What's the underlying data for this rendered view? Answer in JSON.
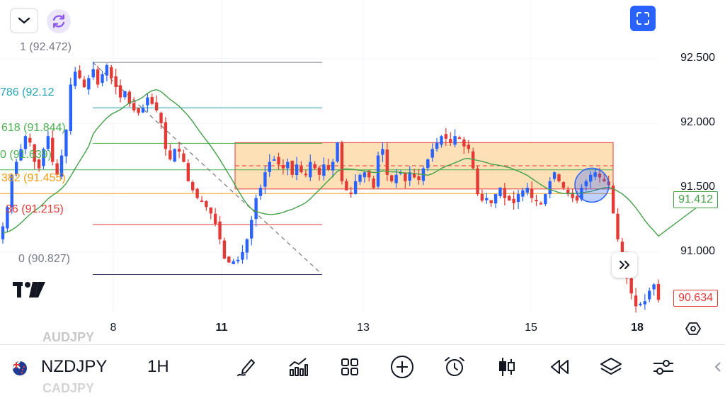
{
  "header": {
    "collapse_icon": "chevron-down-icon",
    "sync_icon": "refresh-icon",
    "fullscreen_icon": "fullscreen-icon"
  },
  "fib_labels": [
    {
      "text": "1 (92.472)",
      "color": "#787b86"
    },
    {
      "text": "786 (92.12",
      "color": "#26a6b8"
    },
    {
      "text": "618 (91.844)",
      "color": "#4caf50"
    },
    {
      "text": "0 (91.639)",
      "color": "#4caf50"
    },
    {
      "text": "382 (91.455)",
      "color": "#f39c12"
    },
    {
      "text": "36 (91.215)",
      "color": "#e53935"
    },
    {
      "text": "0 (90.827)",
      "color": "#787b86"
    }
  ],
  "price_axis": [
    "92.500",
    "92.000",
    "91.500",
    "91.000"
  ],
  "price_tags": {
    "ma": {
      "text": "91.412",
      "color": "#43a047"
    },
    "last": {
      "text": "90.634",
      "color": "#e53935"
    }
  },
  "time_axis": [
    {
      "label": "8",
      "bold": false
    },
    {
      "label": "11",
      "bold": true
    },
    {
      "label": "13",
      "bold": false
    },
    {
      "label": "15",
      "bold": false
    },
    {
      "label": "18",
      "bold": true
    }
  ],
  "bottom_bar": {
    "ghost_above": "AUDJPY",
    "ghost_below": "CADJPY",
    "symbol": "NZDJPY",
    "interval": "1H",
    "tools": [
      "draw-pen-icon",
      "indicators-icon",
      "layouts-grid-icon",
      "add-icon",
      "alarm-icon",
      "candles-icon",
      "replay-icon",
      "layers-icon",
      "settings-sliders-icon"
    ]
  },
  "colors": {
    "up": "#2962ff",
    "down": "#e53935",
    "ma": "#43a047",
    "range_fill": "#fde0b6"
  },
  "chart_data": {
    "type": "candlestick",
    "symbol": "NZDJPY",
    "interval": "1H",
    "ylim": [
      90.62,
      92.66
    ],
    "x_ticks": [
      "8",
      "11",
      "13",
      "15",
      "18"
    ],
    "fib_levels": [
      {
        "ratio": "1",
        "price": 92.472
      },
      {
        "ratio": "0.786",
        "price": 92.12
      },
      {
        "ratio": "0.618",
        "price": 91.844
      },
      {
        "ratio": "0.5",
        "price": 91.639
      },
      {
        "ratio": "0.382",
        "price": 91.455
      },
      {
        "ratio": "0.236",
        "price": 91.215
      },
      {
        "ratio": "0",
        "price": 90.827
      }
    ],
    "range_box": {
      "top": 91.85,
      "bottom": 91.49,
      "mid": 91.67
    },
    "ma_last": 91.412,
    "last_price": 90.634,
    "closes": [
      91.2,
      91.35,
      91.6,
      91.7,
      91.8,
      91.9,
      91.85,
      91.7,
      91.65,
      91.8,
      91.9,
      91.7,
      91.6,
      91.75,
      91.95,
      92.3,
      92.4,
      92.35,
      92.28,
      92.35,
      92.42,
      92.3,
      92.38,
      92.45,
      92.35,
      92.28,
      92.2,
      92.25,
      92.15,
      92.1,
      92.08,
      92.12,
      92.2,
      92.15,
      92.1,
      92.0,
      91.8,
      91.72,
      91.8,
      91.78,
      91.7,
      91.55,
      91.48,
      91.42,
      91.4,
      91.35,
      91.3,
      91.22,
      91.1,
      90.95,
      90.92,
      90.93,
      90.94,
      91.0,
      91.1,
      91.25,
      91.42,
      91.5,
      91.62,
      91.7,
      91.72,
      91.68,
      91.65,
      91.7,
      91.6,
      91.68,
      91.62,
      91.6,
      91.7,
      91.65,
      91.6,
      91.68,
      91.64,
      91.7,
      91.85,
      91.55,
      91.48,
      91.45,
      91.55,
      91.6,
      91.62,
      91.58,
      91.5,
      91.75,
      91.8,
      91.6,
      91.55,
      91.6,
      91.62,
      91.55,
      91.62,
      91.58,
      91.56,
      91.65,
      91.72,
      91.8,
      91.85,
      91.9,
      91.88,
      91.85,
      91.9,
      91.88,
      91.82,
      91.8,
      91.65,
      91.45,
      91.4,
      91.42,
      91.38,
      91.45,
      91.5,
      91.42,
      91.4,
      91.38,
      91.45,
      91.48,
      91.5,
      91.42,
      91.4,
      91.38,
      91.45,
      91.55,
      91.62,
      91.55,
      91.5,
      91.45,
      91.42,
      91.4,
      91.5,
      91.55,
      91.6,
      91.62,
      91.58,
      91.55,
      91.52,
      91.3,
      91.1,
      91.0,
      90.8,
      90.68,
      90.58,
      90.6,
      90.62,
      90.7,
      90.75,
      90.63
    ]
  }
}
